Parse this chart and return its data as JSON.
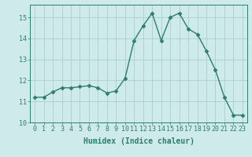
{
  "x": [
    0,
    1,
    2,
    3,
    4,
    5,
    6,
    7,
    8,
    9,
    10,
    11,
    12,
    13,
    14,
    15,
    16,
    17,
    18,
    19,
    20,
    21,
    22,
    23
  ],
  "y": [
    11.2,
    11.2,
    11.45,
    11.65,
    11.65,
    11.7,
    11.75,
    11.65,
    11.4,
    11.5,
    12.1,
    13.9,
    14.6,
    15.2,
    13.9,
    15.0,
    15.2,
    14.45,
    14.2,
    13.4,
    12.5,
    11.2,
    10.35,
    10.35
  ],
  "line_color": "#2e7d6e",
  "marker": "D",
  "markersize": 2.5,
  "linewidth": 1.0,
  "background_color": "#ceeaea",
  "grid_color": "#aacece",
  "xlabel": "Humidex (Indice chaleur)",
  "xlim": [
    -0.5,
    23.5
  ],
  "ylim": [
    10,
    15.6
  ],
  "yticks": [
    10,
    11,
    12,
    13,
    14,
    15
  ],
  "xticks": [
    0,
    1,
    2,
    3,
    4,
    5,
    6,
    7,
    8,
    9,
    10,
    11,
    12,
    13,
    14,
    15,
    16,
    17,
    18,
    19,
    20,
    21,
    22,
    23
  ],
  "tick_color": "#2e7d6e",
  "label_color": "#2e7d6e",
  "xlabel_fontsize": 7.0,
  "tick_fontsize": 6.0
}
